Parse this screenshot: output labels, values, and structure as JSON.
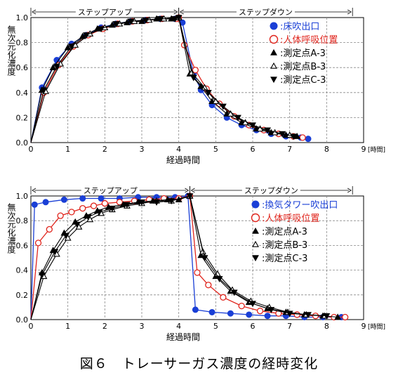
{
  "caption": "図６　トレーサーガス濃度の経時変化",
  "chart_data": [
    {
      "type": "line",
      "ylabel": "無次元化濃度",
      "xlabel": "経過時間",
      "x_unit": "[時間]",
      "xlim": [
        0,
        9
      ],
      "ylim": [
        0,
        1.0
      ],
      "x_ticks": [
        "0",
        "1",
        "2",
        "3",
        "4",
        "5",
        "6",
        "7",
        "8",
        "9"
      ],
      "y_ticks": [
        "0.0",
        "0.2",
        "0.4",
        "0.6",
        "0.8",
        "1.0"
      ],
      "phases": [
        {
          "label": "ステップアップ",
          "x_start": 0,
          "x_end": 4
        },
        {
          "label": "ステップダウン",
          "x_start": 4,
          "x_end": 8.7
        }
      ],
      "legend_position": "top-right",
      "series": [
        {
          "name": "床吹出口",
          "marker": "filled-circle",
          "color": "#1a3fd6",
          "points": [
            [
              0,
              0
            ],
            [
              0.3,
              0.44
            ],
            [
              0.7,
              0.66
            ],
            [
              1.1,
              0.79
            ],
            [
              1.5,
              0.86
            ],
            [
              1.9,
              0.92
            ],
            [
              2.3,
              0.95
            ],
            [
              2.7,
              0.97
            ],
            [
              3.1,
              0.98
            ],
            [
              3.5,
              0.99
            ],
            [
              3.9,
              0.99
            ],
            [
              4.0,
              1.0
            ],
            [
              4.1,
              0.96
            ],
            [
              4.4,
              0.55
            ],
            [
              4.6,
              0.42
            ],
            [
              4.9,
              0.3
            ],
            [
              5.3,
              0.2
            ],
            [
              5.7,
              0.14
            ],
            [
              6.1,
              0.1
            ],
            [
              6.5,
              0.07
            ],
            [
              6.9,
              0.05
            ],
            [
              7.3,
              0.04
            ],
            [
              7.5,
              0.03
            ]
          ]
        },
        {
          "name": "人体呼吸位置",
          "marker": "open-circle",
          "color": "#e0241c",
          "points": [
            [
              0,
              0
            ],
            [
              0.35,
              0.4
            ],
            [
              0.75,
              0.62
            ],
            [
              1.15,
              0.77
            ],
            [
              1.55,
              0.86
            ],
            [
              1.95,
              0.91
            ],
            [
              2.35,
              0.95
            ],
            [
              2.75,
              0.97
            ],
            [
              3.15,
              0.98
            ],
            [
              3.55,
              0.99
            ],
            [
              3.95,
              0.99
            ],
            [
              4.0,
              1.0
            ],
            [
              4.15,
              0.78
            ],
            [
              4.45,
              0.58
            ],
            [
              4.75,
              0.43
            ],
            [
              5.1,
              0.31
            ],
            [
              5.5,
              0.21
            ],
            [
              5.9,
              0.14
            ],
            [
              6.3,
              0.1
            ],
            [
              6.7,
              0.07
            ],
            [
              7.1,
              0.05
            ],
            [
              7.35,
              0.04
            ]
          ]
        },
        {
          "name": "測定点A-3",
          "marker": "filled-triangle",
          "color": "#000000",
          "points": [
            [
              0,
              0
            ],
            [
              0.3,
              0.42
            ],
            [
              0.6,
              0.6
            ],
            [
              1.0,
              0.76
            ],
            [
              1.4,
              0.85
            ],
            [
              1.8,
              0.91
            ],
            [
              2.2,
              0.94
            ],
            [
              2.6,
              0.96
            ],
            [
              3.0,
              0.97
            ],
            [
              3.4,
              0.99
            ],
            [
              3.8,
              0.99
            ],
            [
              4.0,
              1.0
            ],
            [
              4.3,
              0.55
            ],
            [
              4.6,
              0.45
            ],
            [
              4.9,
              0.33
            ],
            [
              5.3,
              0.23
            ],
            [
              5.7,
              0.16
            ],
            [
              6.1,
              0.11
            ],
            [
              6.5,
              0.08
            ],
            [
              6.9,
              0.06
            ],
            [
              7.2,
              0.05
            ]
          ]
        },
        {
          "name": "測定点B-3",
          "marker": "open-triangle",
          "color": "#000000",
          "points": [
            [
              0,
              0
            ],
            [
              0.4,
              0.41
            ],
            [
              0.8,
              0.63
            ],
            [
              1.2,
              0.78
            ],
            [
              1.6,
              0.87
            ],
            [
              2.0,
              0.92
            ],
            [
              2.4,
              0.95
            ],
            [
              2.8,
              0.97
            ],
            [
              3.2,
              0.98
            ],
            [
              3.6,
              0.99
            ],
            [
              4.0,
              1.0
            ],
            [
              4.35,
              0.56
            ],
            [
              4.7,
              0.44
            ],
            [
              5.0,
              0.33
            ],
            [
              5.4,
              0.23
            ],
            [
              5.8,
              0.16
            ],
            [
              6.2,
              0.11
            ],
            [
              6.6,
              0.08
            ],
            [
              7.0,
              0.06
            ]
          ]
        },
        {
          "name": "測定点C-3",
          "marker": "filled-inverted-triangle",
          "color": "#000000",
          "points": [
            [
              0,
              0
            ],
            [
              0.35,
              0.42
            ],
            [
              0.7,
              0.61
            ],
            [
              1.1,
              0.77
            ],
            [
              1.5,
              0.86
            ],
            [
              1.9,
              0.91
            ],
            [
              2.3,
              0.95
            ],
            [
              2.7,
              0.97
            ],
            [
              3.1,
              0.98
            ],
            [
              3.5,
              0.99
            ],
            [
              3.9,
              0.99
            ],
            [
              4.0,
              1.0
            ],
            [
              4.4,
              0.52
            ],
            [
              4.8,
              0.4
            ],
            [
              5.2,
              0.29
            ],
            [
              5.6,
              0.2
            ],
            [
              6.0,
              0.14
            ],
            [
              6.4,
              0.1
            ],
            [
              6.8,
              0.07
            ],
            [
              7.1,
              0.05
            ]
          ]
        }
      ]
    },
    {
      "type": "line",
      "ylabel": "無次元化濃度",
      "xlabel": "経過時間",
      "x_unit": "[時間]",
      "xlim": [
        0,
        9
      ],
      "ylim": [
        0,
        1.0
      ],
      "x_ticks": [
        "0",
        "1",
        "2",
        "3",
        "4",
        "5",
        "6",
        "7",
        "8",
        "9"
      ],
      "y_ticks": [
        "0.0",
        "0.2",
        "0.4",
        "0.6",
        "0.8",
        "1.0"
      ],
      "phases": [
        {
          "label": "ステップアップ",
          "x_start": 0,
          "x_end": 4.3
        },
        {
          "label": "ステップダウン",
          "x_start": 4.3,
          "x_end": 8.7
        }
      ],
      "legend_position": "top-right",
      "series": [
        {
          "name": "換気タワー吹出口",
          "marker": "filled-circle",
          "color": "#1a3fd6",
          "points": [
            [
              0,
              0
            ],
            [
              0.1,
              0.93
            ],
            [
              0.4,
              0.95
            ],
            [
              0.9,
              0.97
            ],
            [
              1.4,
              0.98
            ],
            [
              1.9,
              0.98
            ],
            [
              2.4,
              0.98
            ],
            [
              2.9,
              0.99
            ],
            [
              3.4,
              0.99
            ],
            [
              3.9,
              0.99
            ],
            [
              4.25,
              1.0
            ],
            [
              4.45,
              0.08
            ],
            [
              4.9,
              0.06
            ],
            [
              5.4,
              0.05
            ],
            [
              5.9,
              0.04
            ],
            [
              6.4,
              0.03
            ],
            [
              6.9,
              0.03
            ],
            [
              7.4,
              0.02
            ],
            [
              7.9,
              0.02
            ],
            [
              8.4,
              0.02
            ]
          ]
        },
        {
          "name": "人体呼吸位置",
          "marker": "open-circle",
          "color": "#e0241c",
          "points": [
            [
              0,
              0
            ],
            [
              0.2,
              0.62
            ],
            [
              0.5,
              0.73
            ],
            [
              0.8,
              0.84
            ],
            [
              1.1,
              0.87
            ],
            [
              1.4,
              0.9
            ],
            [
              1.7,
              0.92
            ],
            [
              2.0,
              0.94
            ],
            [
              2.4,
              0.95
            ],
            [
              2.8,
              0.96
            ],
            [
              3.2,
              0.97
            ],
            [
              3.6,
              0.98
            ],
            [
              4.0,
              0.98
            ],
            [
              4.3,
              1.0
            ],
            [
              4.5,
              0.38
            ],
            [
              4.8,
              0.28
            ],
            [
              5.2,
              0.18
            ],
            [
              5.7,
              0.11
            ],
            [
              6.2,
              0.07
            ],
            [
              6.7,
              0.05
            ],
            [
              7.2,
              0.04
            ],
            [
              7.7,
              0.03
            ],
            [
              8.2,
              0.02
            ],
            [
              8.5,
              0.02
            ]
          ]
        },
        {
          "name": "測定点A-3",
          "marker": "filled-triangle",
          "color": "#000000",
          "points": [
            [
              0,
              0
            ],
            [
              0.3,
              0.38
            ],
            [
              0.6,
              0.56
            ],
            [
              0.9,
              0.7
            ],
            [
              1.2,
              0.79
            ],
            [
              1.5,
              0.84
            ],
            [
              1.8,
              0.88
            ],
            [
              2.1,
              0.91
            ],
            [
              2.5,
              0.93
            ],
            [
              2.9,
              0.95
            ],
            [
              3.3,
              0.96
            ],
            [
              3.7,
              0.97
            ],
            [
              4.0,
              0.97
            ],
            [
              4.3,
              1.0
            ],
            [
              4.6,
              0.52
            ],
            [
              5.0,
              0.35
            ],
            [
              5.4,
              0.23
            ],
            [
              5.9,
              0.14
            ],
            [
              6.4,
              0.09
            ],
            [
              6.9,
              0.06
            ],
            [
              7.4,
              0.04
            ],
            [
              7.9,
              0.03
            ],
            [
              8.3,
              0.02
            ]
          ]
        },
        {
          "name": "測定点B-3",
          "marker": "open-triangle",
          "color": "#000000",
          "points": [
            [
              0,
              0
            ],
            [
              0.35,
              0.35
            ],
            [
              0.7,
              0.53
            ],
            [
              1.0,
              0.66
            ],
            [
              1.3,
              0.75
            ],
            [
              1.6,
              0.81
            ],
            [
              1.9,
              0.86
            ],
            [
              2.2,
              0.89
            ],
            [
              2.6,
              0.92
            ],
            [
              3.0,
              0.94
            ],
            [
              3.4,
              0.96
            ],
            [
              3.8,
              0.96
            ],
            [
              4.3,
              1.0
            ],
            [
              4.65,
              0.55
            ],
            [
              5.05,
              0.37
            ],
            [
              5.45,
              0.24
            ],
            [
              5.95,
              0.15
            ],
            [
              6.45,
              0.1
            ],
            [
              6.95,
              0.06
            ],
            [
              7.45,
              0.04
            ],
            [
              7.95,
              0.03
            ]
          ]
        },
        {
          "name": "測定点C-3",
          "marker": "filled-inverted-triangle",
          "color": "#000000",
          "points": [
            [
              0,
              0
            ],
            [
              0.3,
              0.36
            ],
            [
              0.65,
              0.55
            ],
            [
              0.95,
              0.68
            ],
            [
              1.25,
              0.77
            ],
            [
              1.55,
              0.83
            ],
            [
              1.85,
              0.87
            ],
            [
              2.2,
              0.9
            ],
            [
              2.6,
              0.93
            ],
            [
              3.0,
              0.95
            ],
            [
              3.4,
              0.95
            ],
            [
              3.8,
              0.96
            ],
            [
              4.3,
              1.0
            ],
            [
              4.7,
              0.5
            ],
            [
              5.1,
              0.33
            ],
            [
              5.5,
              0.22
            ],
            [
              6.0,
              0.13
            ],
            [
              6.5,
              0.08
            ],
            [
              7.0,
              0.05
            ],
            [
              7.5,
              0.04
            ],
            [
              8.0,
              0.03
            ]
          ]
        }
      ]
    }
  ]
}
